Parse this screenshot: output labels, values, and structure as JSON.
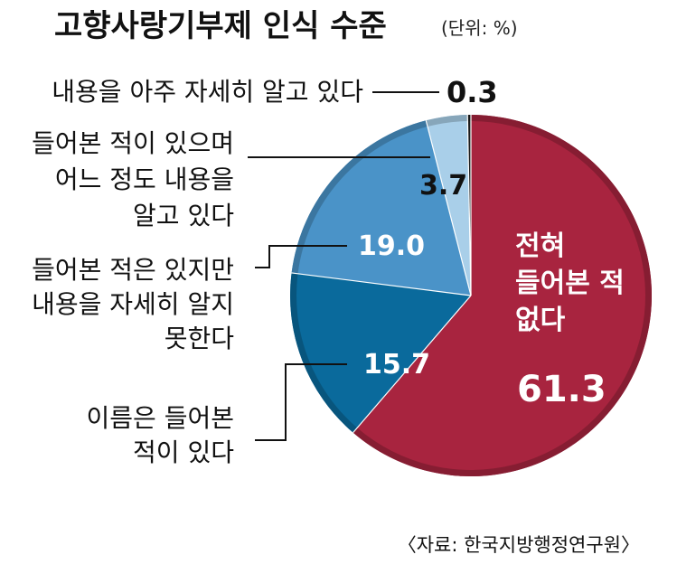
{
  "chart_data": {
    "type": "pie",
    "title": "고향사랑기부제 인식 수준",
    "unit": "(단위: %)",
    "source": "〈자료: 한국지방행정연구원〉",
    "slices": [
      {
        "label_lines": [
          "전혀",
          "들어본 적",
          "없다"
        ],
        "value": 61.3,
        "value_text": "61.3",
        "color": "#a8243f",
        "inner_label": true
      },
      {
        "label_lines": [
          "이름은 들어본",
          "적이 있다"
        ],
        "value": 15.7,
        "value_text": "15.7",
        "color": "#0a6a9c"
      },
      {
        "label_lines": [
          "들어본 적은 있지만",
          "내용을 자세히 알지",
          "못한다"
        ],
        "value": 19.0,
        "value_text": "19.0",
        "color": "#4a93c8"
      },
      {
        "label_lines": [
          "들어본 적이 있으며",
          "어느 정도 내용을",
          "알고 있다"
        ],
        "value": 3.7,
        "value_text": "3.7",
        "color": "#a9cfe9"
      },
      {
        "label_lines": [
          "내용을 아주 자세히 알고 있다"
        ],
        "value": 0.3,
        "value_text": "0.3",
        "color": "#1a1a1a"
      }
    ]
  }
}
